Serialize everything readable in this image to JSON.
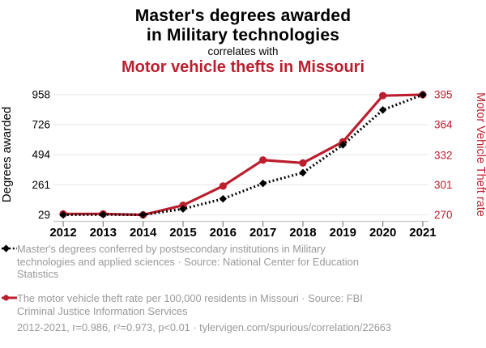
{
  "header": {
    "title_line1": "Master's degrees awarded",
    "title_line2": "in Military technologies",
    "connector": "correlates with",
    "secondary_title": "Motor vehicle thefts in Missouri"
  },
  "chart_data": {
    "type": "line",
    "x": [
      2012,
      2013,
      2014,
      2015,
      2016,
      2017,
      2018,
      2019,
      2020,
      2021
    ],
    "series": [
      {
        "name": "Master's degrees awarded in Military technologies",
        "axis": "left",
        "marker": "diamond",
        "line_style": "dotted",
        "color": "#000000",
        "values": [
          29,
          31,
          30,
          75,
          153,
          272,
          355,
          570,
          840,
          958
        ]
      },
      {
        "name": "Motor vehicle thefts in Missouri",
        "axis": "right",
        "marker": "circle",
        "line_style": "solid",
        "color": "#bb1f2e",
        "values": [
          271,
          271,
          270,
          280,
          300,
          327,
          324,
          346,
          394,
          395
        ]
      }
    ],
    "left_axis": {
      "label": "Degrees awarded",
      "ticks": [
        29,
        261,
        494,
        726,
        958
      ],
      "range": [
        29,
        958
      ]
    },
    "right_axis": {
      "label": "Motor Vehicle Theft rate",
      "ticks": [
        270,
        301,
        332,
        364,
        395
      ],
      "range": [
        270,
        395
      ]
    },
    "grid": true,
    "legend_position": "bottom"
  },
  "legend": {
    "items": [
      {
        "marker": "black-diamond-dotted",
        "text": "Master's degrees conferred by postsecondary institutions in Military technologies and applied sciences · Source: National Center for Education Statistics"
      },
      {
        "marker": "red-circle-solid",
        "text": "The motor vehicle theft rate per 100,000 residents in Missouri · Source: FBI Criminal Justice Information Services"
      }
    ]
  },
  "footer": {
    "stats": "2012-2021, r=0.986, r²=0.973, p<0.01 · tylervigen.com/spurious/correlation/22663"
  },
  "colors": {
    "accent_red": "#bb1f2e",
    "muted_text": "#999999",
    "grid": "#e5e5e5",
    "axis_line": "#c9c9c9",
    "tick": "#7d7d7d",
    "black": "#000000"
  }
}
